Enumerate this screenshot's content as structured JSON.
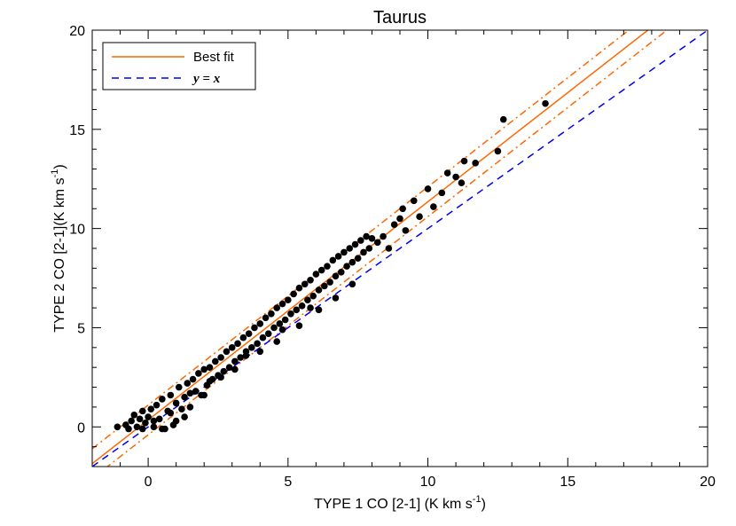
{
  "chart_data": {
    "type": "scatter",
    "title": "Taurus",
    "xlabel": {
      "main": "TYPE 1 CO [2-1] (K km s",
      "sup": "-1",
      "end": ")"
    },
    "ylabel": {
      "main": "TYPE 2 CO [2-1](K km s",
      "sup": "-1",
      "end": ")"
    },
    "xlim": [
      -2,
      20
    ],
    "ylim": [
      -2,
      20
    ],
    "xticks": [
      0,
      5,
      10,
      15,
      20
    ],
    "yticks": [
      0,
      5,
      10,
      15,
      20
    ],
    "xtick_labels": [
      "0",
      "5",
      "10",
      "15",
      "20"
    ],
    "ytick_labels": [
      "0",
      "5",
      "10",
      "15",
      "20"
    ],
    "legend": {
      "position": "top-left",
      "entries": [
        {
          "label": "Best fit",
          "color": "#ff6600",
          "style": "solid"
        },
        {
          "label": "y = x",
          "color": "#0000ee",
          "style": "dashed"
        }
      ]
    },
    "lines": [
      {
        "label": "Best fit",
        "slope": 1.1,
        "intercept": 0.35,
        "color": "#ff6600",
        "style": "solid"
      },
      {
        "label": "upper bound",
        "slope": 1.1,
        "intercept": 1.1,
        "color": "#ff6600",
        "style": "dashdot"
      },
      {
        "label": "lower bound",
        "slope": 1.1,
        "intercept": -0.4,
        "color": "#ff6600",
        "style": "dashdot"
      },
      {
        "label": "y = x",
        "slope": 1.0,
        "intercept": 0.0,
        "color": "#0000ee",
        "style": "dashed"
      }
    ],
    "series": [
      {
        "marker_color": "#000000",
        "points": [
          [
            -1.1,
            0.0
          ],
          [
            -0.8,
            0.1
          ],
          [
            -0.7,
            -0.1
          ],
          [
            -0.6,
            0.3
          ],
          [
            -0.5,
            0.6
          ],
          [
            -0.4,
            0.0
          ],
          [
            -0.3,
            0.4
          ],
          [
            -0.2,
            0.8
          ],
          [
            -0.1,
            0.2
          ],
          [
            0.0,
            0.5
          ],
          [
            0.1,
            0.9
          ],
          [
            0.2,
            0.0
          ],
          [
            0.3,
            1.1
          ],
          [
            0.4,
            0.4
          ],
          [
            0.5,
            1.4
          ],
          [
            0.6,
            -0.1
          ],
          [
            0.7,
            0.8
          ],
          [
            0.8,
            1.6
          ],
          [
            0.9,
            0.1
          ],
          [
            1.0,
            1.2
          ],
          [
            1.1,
            2.0
          ],
          [
            1.2,
            0.9
          ],
          [
            1.3,
            1.5
          ],
          [
            1.4,
            2.2
          ],
          [
            1.5,
            1.0
          ],
          [
            1.6,
            2.4
          ],
          [
            1.7,
            1.8
          ],
          [
            1.8,
            2.7
          ],
          [
            1.9,
            1.6
          ],
          [
            2.0,
            2.9
          ],
          [
            2.1,
            2.1
          ],
          [
            2.2,
            3.0
          ],
          [
            2.3,
            2.4
          ],
          [
            2.4,
            3.3
          ],
          [
            2.5,
            2.6
          ],
          [
            2.6,
            3.5
          ],
          [
            2.7,
            2.8
          ],
          [
            2.8,
            3.8
          ],
          [
            2.9,
            3.0
          ],
          [
            3.0,
            4.0
          ],
          [
            3.1,
            3.3
          ],
          [
            3.2,
            4.2
          ],
          [
            3.3,
            3.5
          ],
          [
            3.4,
            4.5
          ],
          [
            3.5,
            3.8
          ],
          [
            3.6,
            4.7
          ],
          [
            3.7,
            4.0
          ],
          [
            3.8,
            5.0
          ],
          [
            3.9,
            4.2
          ],
          [
            4.0,
            5.2
          ],
          [
            4.1,
            4.5
          ],
          [
            4.2,
            5.5
          ],
          [
            4.3,
            4.7
          ],
          [
            4.4,
            5.7
          ],
          [
            4.5,
            5.0
          ],
          [
            4.6,
            6.0
          ],
          [
            4.7,
            5.2
          ],
          [
            4.8,
            6.2
          ],
          [
            4.9,
            5.4
          ],
          [
            5.0,
            6.4
          ],
          [
            5.1,
            5.7
          ],
          [
            5.2,
            6.7
          ],
          [
            5.3,
            5.9
          ],
          [
            5.4,
            7.0
          ],
          [
            5.5,
            6.1
          ],
          [
            5.6,
            7.2
          ],
          [
            5.7,
            6.4
          ],
          [
            5.8,
            7.4
          ],
          [
            5.9,
            6.6
          ],
          [
            6.0,
            7.7
          ],
          [
            6.1,
            6.9
          ],
          [
            6.2,
            7.9
          ],
          [
            6.3,
            7.1
          ],
          [
            6.4,
            8.1
          ],
          [
            6.5,
            7.3
          ],
          [
            6.6,
            8.4
          ],
          [
            6.7,
            7.6
          ],
          [
            6.8,
            8.6
          ],
          [
            6.9,
            7.8
          ],
          [
            7.0,
            8.8
          ],
          [
            7.1,
            8.1
          ],
          [
            7.2,
            9.0
          ],
          [
            7.3,
            8.3
          ],
          [
            7.4,
            9.2
          ],
          [
            7.5,
            8.5
          ],
          [
            7.6,
            9.4
          ],
          [
            7.7,
            8.8
          ],
          [
            7.8,
            9.6
          ],
          [
            7.9,
            9.0
          ],
          [
            8.0,
            9.5
          ],
          [
            8.2,
            9.3
          ],
          [
            8.4,
            9.6
          ],
          [
            8.6,
            9.0
          ],
          [
            8.8,
            10.2
          ],
          [
            9.0,
            10.5
          ],
          [
            9.1,
            11.0
          ],
          [
            9.2,
            9.9
          ],
          [
            9.5,
            11.4
          ],
          [
            9.7,
            10.6
          ],
          [
            10.0,
            12.0
          ],
          [
            10.2,
            11.1
          ],
          [
            10.5,
            11.8
          ],
          [
            10.7,
            12.8
          ],
          [
            11.0,
            12.6
          ],
          [
            11.2,
            12.3
          ],
          [
            11.3,
            13.4
          ],
          [
            11.7,
            13.3
          ],
          [
            12.5,
            13.9
          ],
          [
            12.7,
            15.5
          ],
          [
            14.2,
            16.3
          ],
          [
            0.5,
            -0.1
          ],
          [
            1.0,
            0.3
          ],
          [
            1.3,
            0.5
          ],
          [
            2.0,
            1.6
          ],
          [
            2.6,
            2.5
          ],
          [
            3.1,
            2.9
          ],
          [
            4.0,
            3.8
          ],
          [
            4.6,
            4.3
          ],
          [
            5.4,
            5.1
          ],
          [
            6.1,
            5.9
          ],
          [
            6.7,
            6.5
          ],
          [
            7.3,
            7.2
          ],
          [
            -0.2,
            -0.1
          ],
          [
            0.2,
            0.3
          ],
          [
            0.8,
            0.7
          ],
          [
            1.5,
            1.7
          ],
          [
            2.2,
            2.3
          ],
          [
            3.5,
            3.6
          ],
          [
            4.8,
            4.9
          ],
          [
            5.8,
            6.0
          ]
        ]
      }
    ]
  }
}
